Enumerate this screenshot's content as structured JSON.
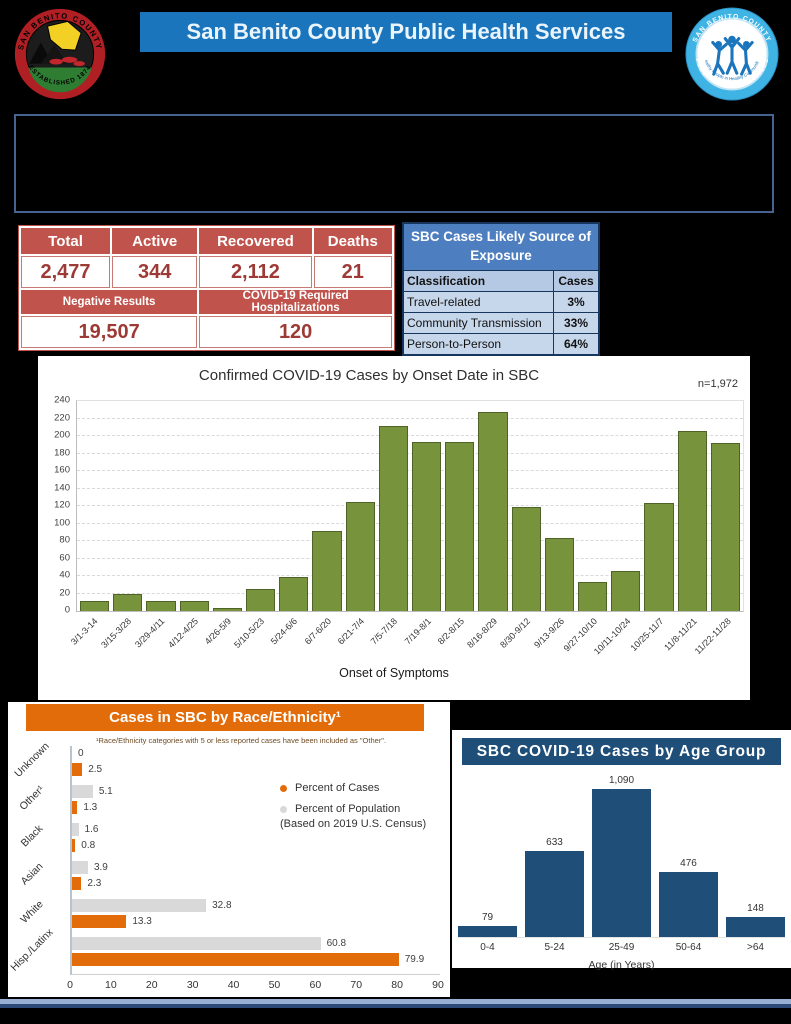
{
  "header": {
    "title": "San Benito County Public Health Services"
  },
  "logos": {
    "county_seal": {
      "top": "SAN BENITO COUNTY",
      "bottom": "ESTABLISHED 1874"
    },
    "phs": {
      "top": "SAN BENITO COUNTY",
      "bottom": "PUBLIC HEALTH SERVICES",
      "inner": "Healthy People in Healthy Communities"
    }
  },
  "stats_table": {
    "headers": [
      "Total",
      "Active",
      "Recovered",
      "Deaths"
    ],
    "values": [
      "2,477",
      "344",
      "2,112",
      "21"
    ],
    "secondary_headers": [
      "Negative Results",
      "COVID-19 Required Hospitalizations"
    ],
    "secondary_values": [
      "19,507",
      "120"
    ]
  },
  "exposure_table": {
    "title": "SBC Cases Likely Source of Exposure",
    "columns": [
      "Classification",
      "Cases"
    ],
    "rows": [
      [
        "Travel-related",
        "3%"
      ],
      [
        "Community Transmission",
        "33%"
      ],
      [
        "Person-to-Person",
        "64%"
      ]
    ]
  },
  "colors": {
    "banner_blue": "#1b75bc",
    "stats_red": "#c0544d",
    "stats_value_red": "#9e3a35",
    "exposure_header_blue": "#4d7ebf",
    "exposure_row_blue": "#c7d7eb",
    "onset_bar_green": "#77933c",
    "cases_orange": "#e36c0a",
    "population_gray": "#d9d9d9",
    "age_bar_navy": "#1f4e79"
  },
  "chart_data": [
    {
      "id": "onset",
      "type": "bar",
      "title": "Confirmed COVID-19 Cases by Onset Date in SBC",
      "annotation": "n=1,972",
      "categories": [
        "3/1-3-14",
        "3/15-3/28",
        "3/29-4/11",
        "4/12-4/25",
        "4/26-5/9",
        "5/10-5/23",
        "5/24-6/6",
        "6/7-6/20",
        "6/21-7/4",
        "7/5-7/18",
        "7/19-8/1",
        "8/2-8/15",
        "8/16-8/29",
        "8/30-9/12",
        "9/13-9/26",
        "9/27-10/10",
        "10/11-10/24",
        "10/25-11/7",
        "11/8-11/21",
        "11/22-11/28"
      ],
      "values": [
        11,
        19,
        11,
        11,
        4,
        25,
        39,
        92,
        125,
        212,
        193,
        193,
        227,
        119,
        84,
        33,
        46,
        124,
        206,
        192
      ],
      "xlabel": "Onset of Symptoms",
      "ylabel": "",
      "ylim": [
        0,
        240
      ],
      "ytick_step": 20,
      "grid": true,
      "bar_color": "#77933c",
      "bar_border": "#4f6228"
    },
    {
      "id": "race",
      "type": "bar-horizontal",
      "title": "Cases in SBC by Race/Ethnicity¹",
      "footnote": "¹Race/Ethnicity categories with 5 or less reported cases have been included as \"Other\".",
      "categories": [
        "Unknown",
        "Other¹",
        "Black",
        "Asian",
        "White",
        "Hisp./Latinx"
      ],
      "series": [
        {
          "name": "Percent of Cases",
          "color": "#e36c0a",
          "values": [
            2.5,
            1.3,
            0.8,
            2.3,
            13.3,
            79.9
          ],
          "labels": [
            "2.5",
            "1.3",
            "0.8",
            "2.3",
            "13.3",
            "79.9"
          ]
        },
        {
          "name": "Percent of Population",
          "note": "(Based on 2019 U.S. Census)",
          "color": "#d9d9d9",
          "values": [
            0,
            5.1,
            1.6,
            3.9,
            32.8,
            60.8
          ],
          "labels": [
            "0",
            "5.1",
            "1.6",
            "3.9",
            "32.8",
            "60.8"
          ]
        }
      ],
      "xlim": [
        0,
        90
      ],
      "xtick_step": 10,
      "legend_position": "center-right"
    },
    {
      "id": "age",
      "type": "bar",
      "title": "SBC COVID-19 Cases by Age Group",
      "categories": [
        "0-4",
        "5-24",
        "25-49",
        "50-64",
        ">64"
      ],
      "values": [
        79,
        633,
        1090,
        476,
        148
      ],
      "value_labels": [
        "79",
        "633",
        "1,090",
        "476",
        "148"
      ],
      "xlabel": "Age (in Years)",
      "bar_color": "#1f4e79"
    }
  ]
}
